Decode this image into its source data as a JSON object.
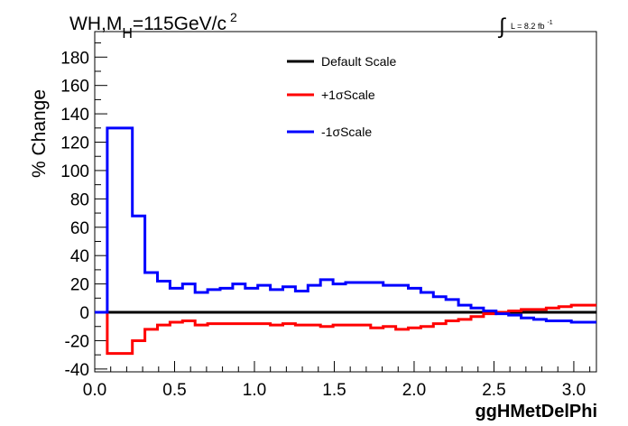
{
  "chart_data": {
    "type": "line",
    "title_parts": {
      "prefix": "WH,M",
      "subscript": "H",
      "mid": "=115GeV/c",
      "superscript": "2"
    },
    "lumi_label": "L = 8.2 fb",
    "lumi_superscript": "-1",
    "lumi_integral_symbol": "∫",
    "xlabel": "ggHMetDelPhi",
    "ylabel": "% Change",
    "xlim": [
      0,
      3.14159
    ],
    "ylim": [
      -42,
      198
    ],
    "x_ticks": [
      0.0,
      0.5,
      1.0,
      1.5,
      2.0,
      2.5,
      3.0
    ],
    "x_tick_labels": [
      "0.0",
      "0.5",
      "1.0",
      "1.5",
      "2.0",
      "2.5",
      "3.0"
    ],
    "y_ticks": [
      -40,
      -20,
      0,
      20,
      40,
      60,
      80,
      100,
      120,
      140,
      160,
      180
    ],
    "y_tick_labels": [
      "-40",
      "-20",
      "0",
      "20",
      "40",
      "60",
      "80",
      "100",
      "120",
      "140",
      "160",
      "180"
    ],
    "grid": false,
    "legend_position": "top-center",
    "colors": {
      "default": "#000000",
      "plus": "#ff0000",
      "minus": "#0000ff"
    },
    "bin_edges": [
      0.0,
      0.0785,
      0.157,
      0.2356,
      0.3142,
      0.3927,
      0.4712,
      0.5498,
      0.6283,
      0.7069,
      0.7854,
      0.8639,
      0.9425,
      1.021,
      1.0996,
      1.1781,
      1.2566,
      1.3352,
      1.4137,
      1.4923,
      1.5708,
      1.6493,
      1.7279,
      1.8064,
      1.885,
      1.9635,
      2.042,
      2.1206,
      2.1991,
      2.2777,
      2.3562,
      2.4347,
      2.5133,
      2.5918,
      2.6704,
      2.7489,
      2.8274,
      2.906,
      2.9845,
      3.0631,
      3.1416
    ],
    "series": [
      {
        "name": "Default Scale",
        "key": "default",
        "values": [
          0,
          0,
          0,
          0,
          0,
          0,
          0,
          0,
          0,
          0,
          0,
          0,
          0,
          0,
          0,
          0,
          0,
          0,
          0,
          0,
          0,
          0,
          0,
          0,
          0,
          0,
          0,
          0,
          0,
          0,
          0,
          0,
          0,
          0,
          0,
          0,
          0,
          0,
          0,
          0
        ]
      },
      {
        "name": "+1σScale",
        "key": "plus",
        "values": [
          0,
          -29,
          -29,
          -20,
          -12,
          -9,
          -7,
          -6,
          -9,
          -8,
          -8,
          -8,
          -8,
          -8,
          -9,
          -8,
          -9,
          -9,
          -10,
          -9,
          -9,
          -9,
          -11,
          -10,
          -12,
          -11,
          -10,
          -8,
          -6,
          -5,
          -3,
          -1,
          0,
          1,
          2,
          2,
          3,
          4,
          5,
          5
        ]
      },
      {
        "name": "-1σScale",
        "key": "minus",
        "values": [
          0,
          130,
          130,
          68,
          28,
          22,
          17,
          20,
          14,
          16,
          17,
          20,
          17,
          19,
          16,
          18,
          15,
          19,
          23,
          20,
          21,
          21,
          21,
          19,
          19,
          17,
          14,
          11,
          9,
          5,
          3,
          1,
          -1,
          -2,
          -4,
          -5,
          -6,
          -6,
          -7,
          -7
        ]
      }
    ]
  }
}
